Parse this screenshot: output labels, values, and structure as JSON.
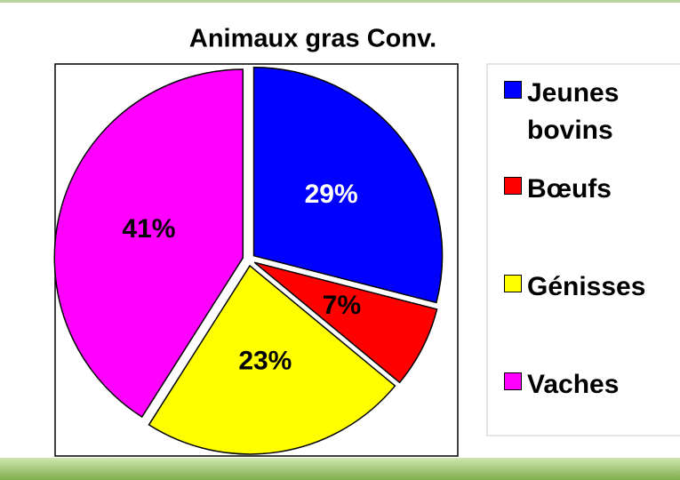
{
  "chart_data": {
    "type": "pie",
    "title": "Animaux gras Conv.",
    "categories": [
      "Jeunes bovins",
      "Bœufs",
      "Génisses",
      "Vaches"
    ],
    "values": [
      29,
      7,
      23,
      41
    ],
    "value_labels": [
      "29%",
      "7%",
      "23%",
      "41%"
    ],
    "colors": [
      "#0000ff",
      "#ff0000",
      "#ffff00",
      "#ff00ff"
    ]
  }
}
